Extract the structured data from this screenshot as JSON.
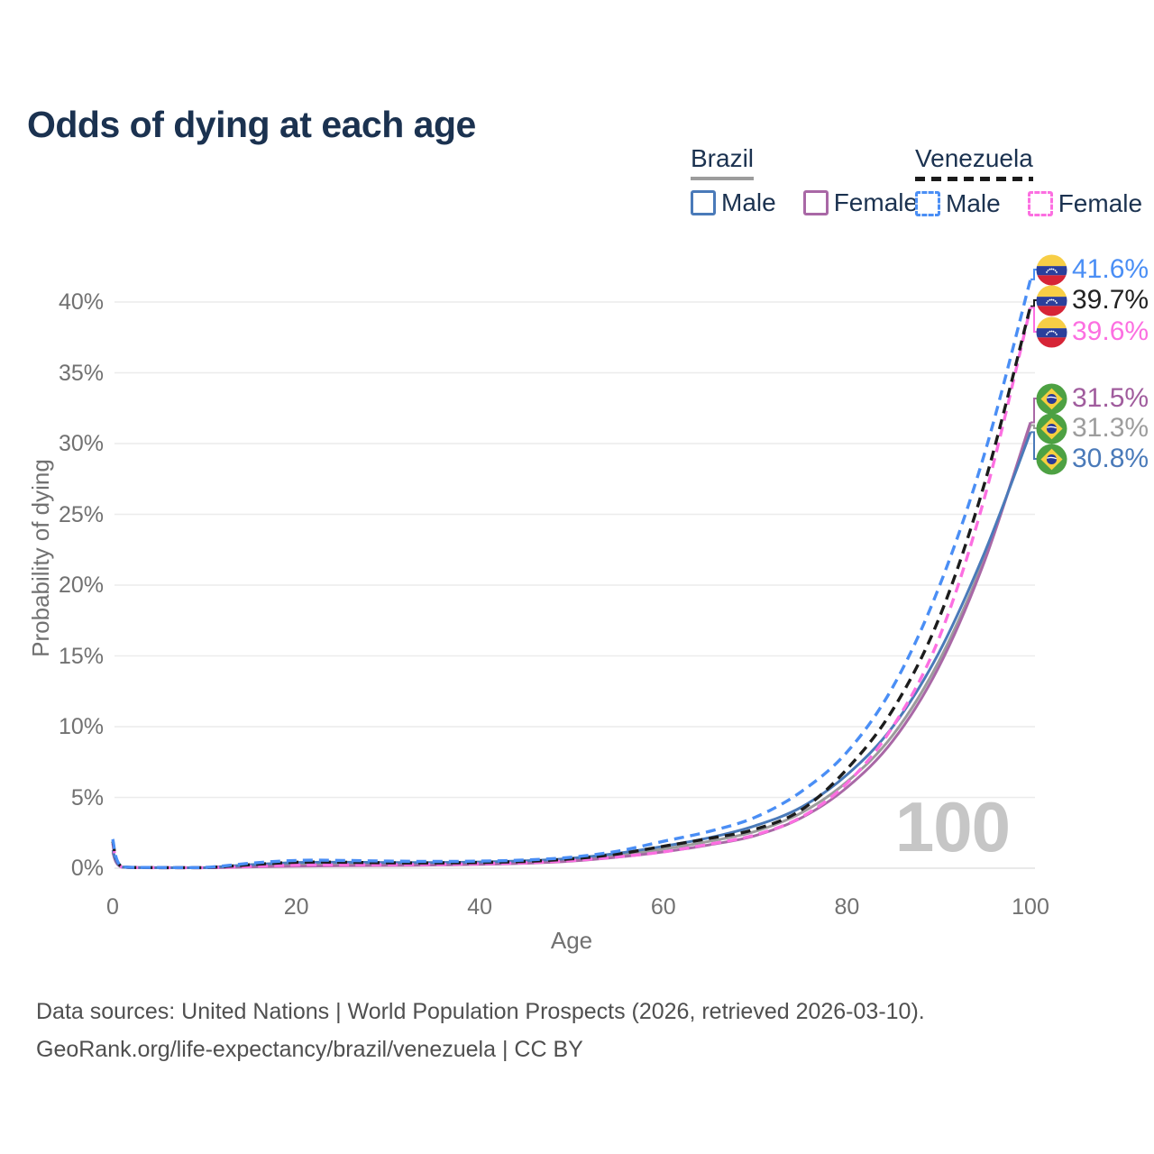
{
  "title": "Odds of dying at each age",
  "legend": {
    "position": "top-right",
    "groups": [
      {
        "label": "Brazil",
        "series": "brazil-both",
        "line_style": "solid",
        "line_color": "#9c9c9c",
        "items": [
          {
            "label": "Male",
            "series": "brazil-male",
            "color": "#4a7ab9",
            "style": "solid"
          },
          {
            "label": "Female",
            "series": "brazil-female",
            "color": "#a968a6",
            "style": "solid"
          }
        ]
      },
      {
        "label": "Venezuela",
        "series": "venezuela-both",
        "line_style": "dashed",
        "line_color": "#1b1b1b",
        "items": [
          {
            "label": "Male",
            "series": "venezuela-male",
            "color": "#4a8ef5",
            "style": "dashed"
          },
          {
            "label": "Female",
            "series": "venezuela-female",
            "color": "#fc6fe1",
            "style": "dashed"
          }
        ]
      }
    ]
  },
  "chart_data": {
    "type": "line",
    "title": "Odds of dying at each age",
    "xlabel": "Age",
    "ylabel": "Probability of dying",
    "xlim": [
      0,
      100
    ],
    "ylim": [
      0,
      43
    ],
    "x_ticks": [
      0,
      20,
      40,
      60,
      80,
      100
    ],
    "y_ticks": [
      0,
      5,
      10,
      15,
      20,
      25,
      30,
      35,
      40
    ],
    "y_tick_suffix": "%",
    "grid": "horizontal",
    "x": [
      0,
      1,
      5,
      10,
      15,
      20,
      25,
      30,
      35,
      40,
      45,
      50,
      55,
      60,
      65,
      70,
      75,
      80,
      85,
      90,
      95,
      100
    ],
    "series": [
      {
        "id": "brazil-both",
        "name": "Brazil — Both sexes",
        "country": "Brazil",
        "sex": "both",
        "color": "#9c9c9c",
        "dash": false,
        "end_label": "31.3%",
        "values": [
          1.2,
          0.08,
          0.03,
          0.03,
          0.17,
          0.28,
          0.3,
          0.3,
          0.31,
          0.35,
          0.44,
          0.6,
          0.92,
          1.35,
          1.9,
          2.6,
          3.9,
          6.1,
          9.4,
          14.6,
          21.9,
          31.3
        ]
      },
      {
        "id": "brazil-female",
        "name": "Brazil — Female",
        "country": "Brazil",
        "sex": "female",
        "color": "#a968a6",
        "dash": false,
        "end_label": "31.5%",
        "values": [
          1.1,
          0.07,
          0.03,
          0.03,
          0.09,
          0.14,
          0.17,
          0.19,
          0.22,
          0.27,
          0.35,
          0.5,
          0.78,
          1.15,
          1.65,
          2.3,
          3.55,
          5.7,
          9.0,
          14.2,
          21.7,
          31.5
        ]
      },
      {
        "id": "brazil-male",
        "name": "Brazil — Male",
        "country": "Brazil",
        "sex": "male",
        "color": "#4a7ab9",
        "dash": false,
        "end_label": "30.8%",
        "values": [
          1.3,
          0.09,
          0.04,
          0.04,
          0.25,
          0.4,
          0.42,
          0.4,
          0.4,
          0.44,
          0.52,
          0.7,
          1.05,
          1.55,
          2.15,
          3.0,
          4.3,
          6.6,
          10.0,
          15.2,
          22.3,
          30.8
        ]
      },
      {
        "id": "venezuela-female",
        "name": "Venezuela — Female",
        "country": "Venezuela",
        "sex": "female",
        "color": "#fc6fe1",
        "dash": true,
        "end_label": "39.6%",
        "values": [
          1.75,
          0.08,
          0.04,
          0.04,
          0.12,
          0.22,
          0.24,
          0.25,
          0.27,
          0.31,
          0.38,
          0.54,
          0.8,
          1.15,
          1.7,
          2.35,
          3.6,
          6.0,
          10.0,
          16.2,
          26.2,
          39.6
        ]
      },
      {
        "id": "venezuela-both",
        "name": "Venezuela — Both sexes",
        "country": "Venezuela",
        "sex": "both",
        "color": "#1c1c1c",
        "dash": true,
        "end_label": "39.7%",
        "values": [
          1.9,
          0.09,
          0.04,
          0.04,
          0.25,
          0.42,
          0.42,
          0.38,
          0.37,
          0.4,
          0.48,
          0.66,
          1.0,
          1.55,
          2.1,
          2.75,
          4.1,
          7.0,
          11.2,
          17.6,
          27.2,
          39.7
        ]
      },
      {
        "id": "venezuela-male",
        "name": "Venezuela — Male",
        "country": "Venezuela",
        "sex": "male",
        "color": "#4a8ef5",
        "dash": true,
        "end_label": "41.6%",
        "values": [
          2.05,
          0.1,
          0.05,
          0.05,
          0.35,
          0.55,
          0.55,
          0.5,
          0.48,
          0.5,
          0.58,
          0.78,
          1.2,
          1.9,
          2.6,
          3.6,
          5.4,
          8.2,
          12.8,
          19.8,
          29.3,
          41.6
        ]
      }
    ]
  },
  "annotations": {
    "watermark": "100",
    "endpoint_labels": [
      {
        "series": "venezuela-male",
        "flag": "venezuela",
        "value": "41.6%",
        "color": "#4a8ef5"
      },
      {
        "series": "venezuela-both",
        "flag": "venezuela",
        "value": "39.7%",
        "color": "#222222"
      },
      {
        "series": "venezuela-female",
        "flag": "venezuela",
        "value": "39.6%",
        "color": "#fc6fe1"
      },
      {
        "series": "brazil-female",
        "flag": "brazil",
        "value": "31.5%",
        "color": "#a05c9d"
      },
      {
        "series": "brazil-both",
        "flag": "brazil",
        "value": "31.3%",
        "color": "#9d9d9d"
      },
      {
        "series": "brazil-male",
        "flag": "brazil",
        "value": "30.8%",
        "color": "#4a7ab9"
      }
    ]
  },
  "footer": {
    "line1": "Data sources: United Nations | World Population Prospects (2026, retrieved 2026-03-10).",
    "line2": "GeoRank.org/life-expectancy/brazil/venezuela | CC BY"
  }
}
